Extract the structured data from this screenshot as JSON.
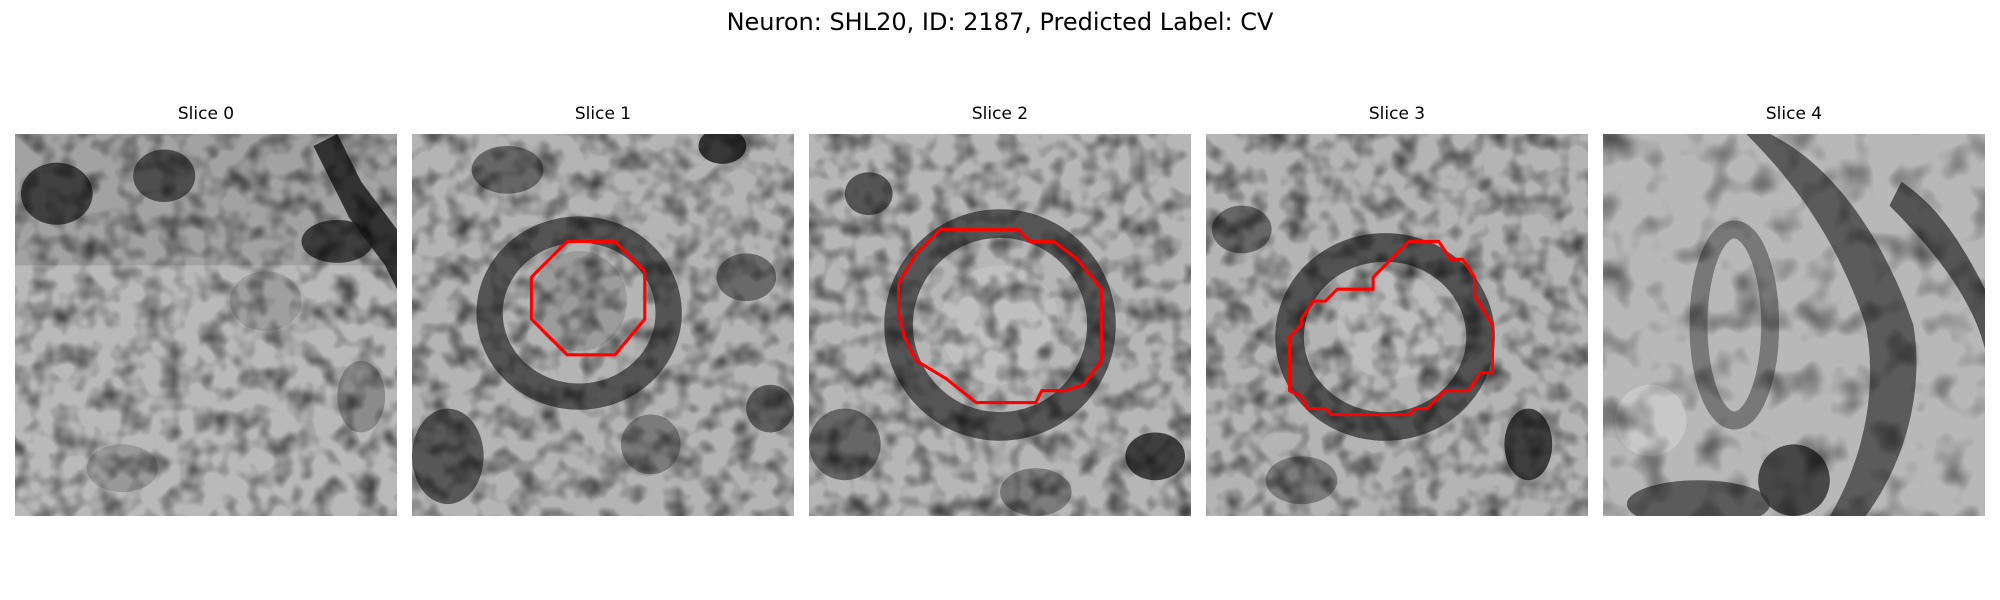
{
  "figure": {
    "title": "Neuron: SHL20, ID: 2187, Predicted Label: CV"
  },
  "panels": [
    {
      "title": "Slice 0",
      "has_outline": false
    },
    {
      "title": "Slice 1",
      "has_outline": true
    },
    {
      "title": "Slice 2",
      "has_outline": true
    },
    {
      "title": "Slice 3",
      "has_outline": true
    },
    {
      "title": "Slice 4",
      "has_outline": false
    }
  ],
  "colors": {
    "outline": "#ff0000",
    "background": "#ffffff"
  }
}
